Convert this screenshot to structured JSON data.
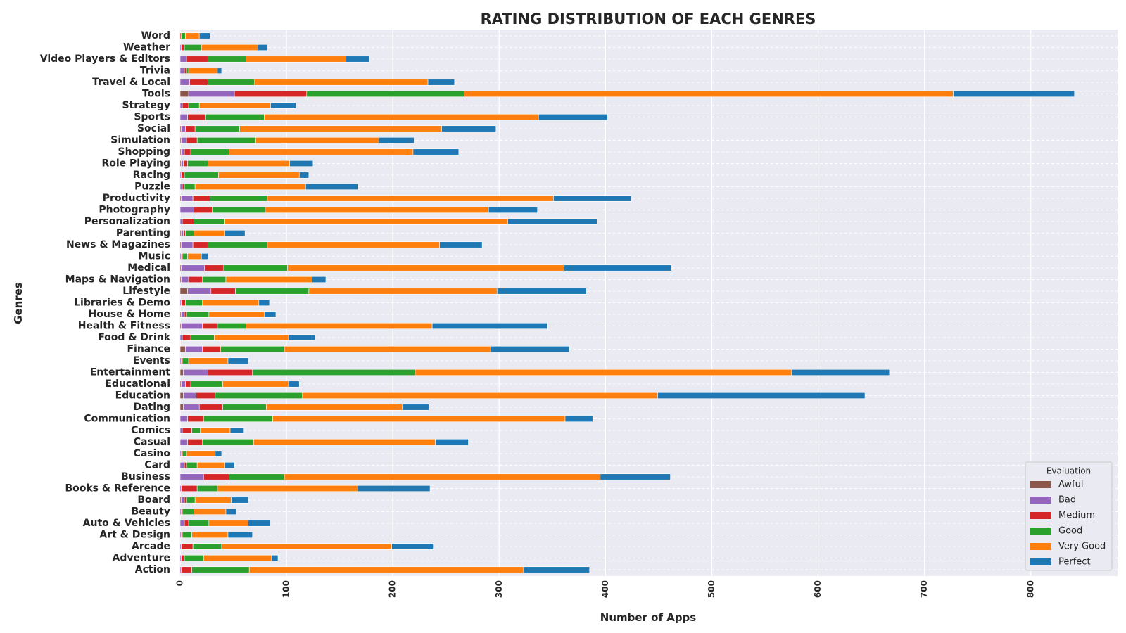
{
  "chart_data": {
    "type": "bar",
    "orientation": "horizontal",
    "stacked": true,
    "title": "RATING DISTRIBUTION OF EACH GENRES",
    "xlabel": "Number of Apps",
    "ylabel": "Genres",
    "xlim": [
      0,
      880
    ],
    "xticks": [
      0,
      100,
      200,
      300,
      400,
      500,
      600,
      700,
      800
    ],
    "grid": true,
    "legend": {
      "title": "Evaluation",
      "position": "bottom-right"
    },
    "categories": [
      "Word",
      "Weather",
      "Video Players & Editors",
      "Trivia",
      "Travel & Local",
      "Tools",
      "Strategy",
      "Sports",
      "Social",
      "Simulation",
      "Shopping",
      "Role Playing",
      "Racing",
      "Puzzle",
      "Productivity",
      "Photography",
      "Personalization",
      "Parenting",
      "News & Magazines",
      "Music",
      "Medical",
      "Maps & Navigation",
      "Lifestyle",
      "Libraries & Demo",
      "House & Home",
      "Health & Fitness",
      "Food & Drink",
      "Finance",
      "Events",
      "Entertainment",
      "Educational",
      "Education",
      "Dating",
      "Communication",
      "Comics",
      "Casual",
      "Casino",
      "Card",
      "Business",
      "Books & Reference",
      "Board",
      "Beauty",
      "Auto & Vehicles",
      "Art & Design",
      "Arcade",
      "Adventure",
      "Action"
    ],
    "series": [
      {
        "name": "Awful",
        "color": "#8c564b",
        "values": [
          0,
          0,
          0,
          0,
          0,
          8,
          0,
          0,
          1,
          1,
          1,
          1,
          0,
          0,
          1,
          0,
          0,
          1,
          1,
          0,
          1,
          1,
          7,
          0,
          1,
          1,
          0,
          5,
          0,
          3,
          1,
          3,
          3,
          0,
          0,
          0,
          0,
          0,
          0,
          0,
          1,
          0,
          0,
          0,
          0,
          0,
          0
        ]
      },
      {
        "name": "Bad",
        "color": "#9467bd",
        "values": [
          0,
          1,
          6,
          4,
          9,
          43,
          2,
          7,
          4,
          5,
          3,
          2,
          1,
          2,
          11,
          13,
          2,
          2,
          11,
          1,
          22,
          7,
          22,
          1,
          3,
          20,
          2,
          16,
          1,
          23,
          4,
          12,
          15,
          7,
          2,
          7,
          1,
          4,
          22,
          1,
          3,
          1,
          4,
          1,
          1,
          1,
          1
        ]
      },
      {
        "name": "Medium",
        "color": "#d62728",
        "values": [
          1,
          3,
          20,
          2,
          17,
          68,
          6,
          17,
          9,
          10,
          6,
          4,
          3,
          2,
          16,
          17,
          11,
          2,
          14,
          1,
          18,
          13,
          23,
          4,
          2,
          14,
          8,
          17,
          1,
          42,
          5,
          18,
          22,
          15,
          9,
          14,
          1,
          2,
          24,
          15,
          2,
          1,
          4,
          1,
          11,
          3,
          10
        ]
      },
      {
        "name": "Good",
        "color": "#2ca02c",
        "values": [
          4,
          16,
          36,
          2,
          44,
          148,
          10,
          55,
          42,
          55,
          36,
          19,
          32,
          10,
          54,
          50,
          29,
          8,
          56,
          5,
          60,
          22,
          69,
          16,
          21,
          27,
          22,
          60,
          6,
          153,
          30,
          82,
          41,
          65,
          8,
          48,
          4,
          10,
          52,
          19,
          8,
          11,
          19,
          9,
          27,
          18,
          54
        ]
      },
      {
        "name": "Very Good",
        "color": "#ff7f0e",
        "values": [
          13,
          53,
          94,
          27,
          163,
          460,
          67,
          258,
          190,
          116,
          173,
          77,
          76,
          104,
          269,
          210,
          266,
          29,
          162,
          13,
          260,
          81,
          177,
          53,
          52,
          175,
          70,
          194,
          37,
          354,
          62,
          334,
          128,
          275,
          28,
          171,
          27,
          26,
          297,
          132,
          34,
          30,
          37,
          34,
          160,
          64,
          258
        ]
      },
      {
        "name": "Perfect",
        "color": "#1f77b4",
        "values": [
          10,
          9,
          22,
          4,
          25,
          114,
          24,
          65,
          51,
          33,
          43,
          22,
          9,
          49,
          73,
          46,
          84,
          19,
          40,
          6,
          101,
          13,
          84,
          10,
          11,
          108,
          25,
          74,
          19,
          92,
          10,
          195,
          25,
          26,
          13,
          31,
          6,
          9,
          66,
          68,
          16,
          10,
          21,
          23,
          39,
          6,
          62
        ]
      }
    ]
  }
}
